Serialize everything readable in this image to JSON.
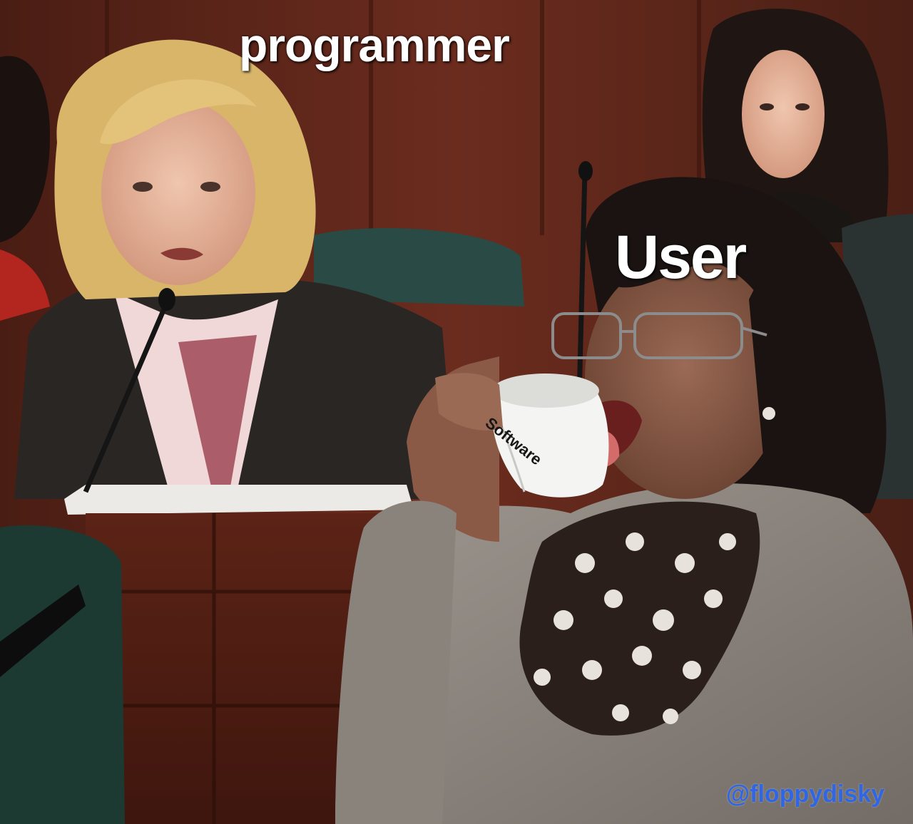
{
  "captions": {
    "programmer": "programmer",
    "user": "User",
    "software": "Software"
  },
  "watermark": "@floppydisky",
  "colors": {
    "caption": "#ffffff",
    "cup_text": "#161616",
    "watermark": "#2e66e6",
    "wood_panel": "#5a2418"
  }
}
